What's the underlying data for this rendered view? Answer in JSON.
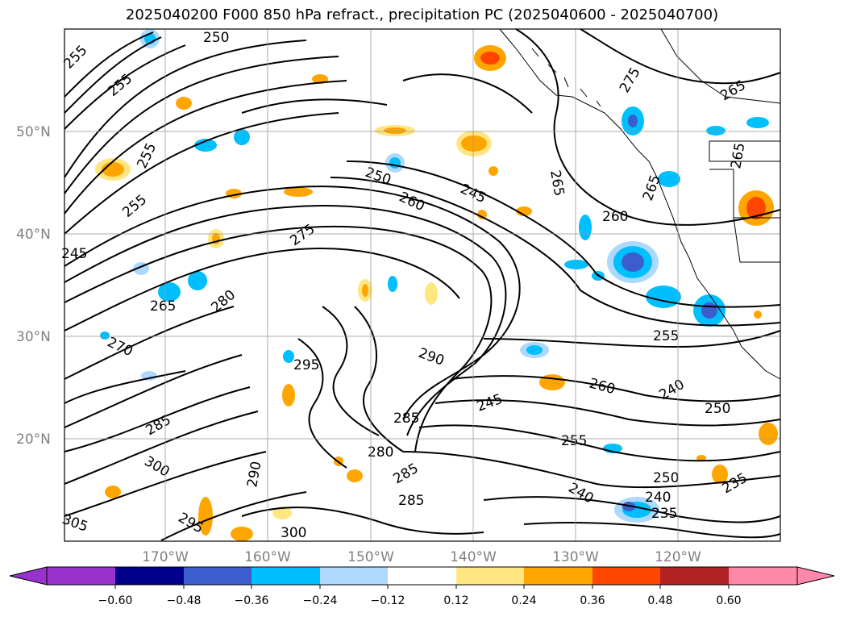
{
  "title": "2025040200 F000 850 hPa refract., precipitation PC (2025040600 - 2025040700)",
  "map": {
    "lat_labels": [
      "50°N",
      "40°N",
      "30°N",
      "20°N"
    ],
    "lon_labels": [
      "170°W",
      "160°W",
      "150°W",
      "140°W",
      "130°W",
      "120°W"
    ],
    "contour_labels": [
      "250",
      "255",
      "265",
      "255",
      "255",
      "255",
      "245",
      "270",
      "265",
      "280",
      "275",
      "250",
      "260",
      "245",
      "265",
      "260",
      "265",
      "265",
      "275",
      "290",
      "295",
      "285",
      "300",
      "290",
      "285",
      "280",
      "285",
      "285",
      "245",
      "255",
      "250",
      "240",
      "250",
      "235",
      "300",
      "295",
      "305",
      "260",
      "255",
      "240",
      "235",
      "240"
    ]
  },
  "colorbar": {
    "ticks": [
      "−0.60",
      "−0.48",
      "−0.36",
      "−0.24",
      "−0.12",
      "0.12",
      "0.24",
      "0.36",
      "0.48",
      "0.60"
    ],
    "colors": [
      "#9932cc",
      "#00008b",
      "#3a5fcd",
      "#00bfff",
      "#add8ff",
      "#ffffff",
      "#ffe680",
      "#ffa500",
      "#ff4500",
      "#b22222",
      "#ff88aa"
    ]
  }
}
